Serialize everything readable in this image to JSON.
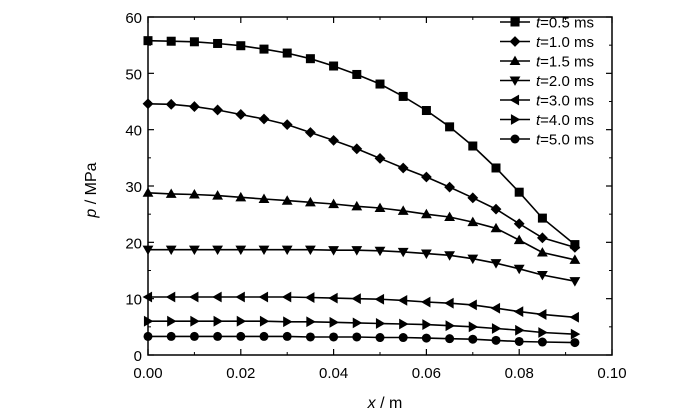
{
  "chart_data": {
    "type": "line",
    "xlabel": {
      "var": "x",
      "unit": " / m"
    },
    "ylabel": {
      "var": "p",
      "unit": " / MPa"
    },
    "xlim": [
      0,
      0.1
    ],
    "ylim": [
      0,
      60
    ],
    "x_ticks": [
      "0.00",
      "0.02",
      "0.04",
      "0.06",
      "0.08",
      "0.10"
    ],
    "y_ticks": [
      "0",
      "10",
      "20",
      "30",
      "40",
      "50",
      "60"
    ],
    "grid": false,
    "legend": "top-right",
    "series": [
      {
        "name": "t=0.5 ms",
        "name_var": "t",
        "name_rest": "=0.5 ms",
        "marker": "square",
        "x": [
          0.0,
          0.005,
          0.01,
          0.015,
          0.02,
          0.025,
          0.03,
          0.035,
          0.04,
          0.045,
          0.05,
          0.055,
          0.06,
          0.065,
          0.07,
          0.075,
          0.08,
          0.085,
          0.092
        ],
        "y": [
          55.8,
          55.7,
          55.6,
          55.3,
          54.9,
          54.3,
          53.6,
          52.6,
          51.3,
          49.8,
          48.1,
          45.9,
          43.4,
          40.5,
          37.1,
          33.2,
          28.9,
          24.3,
          19.6
        ]
      },
      {
        "name": "t=1.0 ms",
        "name_var": "t",
        "name_rest": "=1.0 ms",
        "marker": "diamond",
        "x": [
          0.0,
          0.005,
          0.01,
          0.015,
          0.02,
          0.025,
          0.03,
          0.035,
          0.04,
          0.045,
          0.05,
          0.055,
          0.06,
          0.065,
          0.07,
          0.075,
          0.08,
          0.085,
          0.092
        ],
        "y": [
          44.6,
          44.5,
          44.1,
          43.5,
          42.7,
          41.9,
          40.9,
          39.5,
          38.1,
          36.6,
          34.9,
          33.2,
          31.6,
          29.8,
          27.9,
          25.9,
          23.3,
          20.8,
          19.1
        ]
      },
      {
        "name": "t=1.5 ms",
        "name_var": "t",
        "name_rest": "=1.5 ms",
        "marker": "triangle-up",
        "x": [
          0.0,
          0.005,
          0.01,
          0.015,
          0.02,
          0.025,
          0.03,
          0.035,
          0.04,
          0.045,
          0.05,
          0.055,
          0.06,
          0.065,
          0.07,
          0.075,
          0.08,
          0.085,
          0.092
        ],
        "y": [
          28.8,
          28.6,
          28.5,
          28.3,
          28.0,
          27.7,
          27.4,
          27.1,
          26.8,
          26.4,
          26.1,
          25.6,
          25.0,
          24.5,
          23.6,
          22.5,
          20.4,
          18.2,
          16.9
        ]
      },
      {
        "name": "t=2.0 ms",
        "name_var": "t",
        "name_rest": "=2.0 ms",
        "marker": "triangle-down",
        "x": [
          0.0,
          0.005,
          0.01,
          0.015,
          0.02,
          0.025,
          0.03,
          0.035,
          0.04,
          0.045,
          0.05,
          0.055,
          0.06,
          0.065,
          0.07,
          0.075,
          0.08,
          0.085,
          0.092
        ],
        "y": [
          18.7,
          18.7,
          18.7,
          18.7,
          18.7,
          18.7,
          18.7,
          18.7,
          18.6,
          18.6,
          18.5,
          18.3,
          18.0,
          17.7,
          17.1,
          16.3,
          15.3,
          14.2,
          13.1
        ]
      },
      {
        "name": "t=3.0 ms",
        "name_var": "t",
        "name_rest": "=3.0 ms",
        "marker": "triangle-left",
        "x": [
          0.0,
          0.005,
          0.01,
          0.015,
          0.02,
          0.025,
          0.03,
          0.035,
          0.04,
          0.045,
          0.05,
          0.055,
          0.06,
          0.065,
          0.07,
          0.075,
          0.08,
          0.085,
          0.092
        ],
        "y": [
          10.3,
          10.3,
          10.3,
          10.3,
          10.3,
          10.3,
          10.3,
          10.2,
          10.1,
          10.0,
          9.9,
          9.7,
          9.4,
          9.2,
          8.9,
          8.3,
          7.7,
          7.2,
          6.7
        ]
      },
      {
        "name": "t=4.0 ms",
        "name_var": "t",
        "name_rest": "=4.0 ms",
        "marker": "triangle-right",
        "x": [
          0.0,
          0.005,
          0.01,
          0.015,
          0.02,
          0.025,
          0.03,
          0.035,
          0.04,
          0.045,
          0.05,
          0.055,
          0.06,
          0.065,
          0.07,
          0.075,
          0.08,
          0.085,
          0.092
        ],
        "y": [
          6.0,
          6.0,
          6.0,
          6.0,
          6.0,
          6.0,
          5.9,
          5.9,
          5.8,
          5.7,
          5.6,
          5.5,
          5.4,
          5.2,
          5.0,
          4.7,
          4.4,
          4.0,
          3.7
        ]
      },
      {
        "name": "t=5.0 ms",
        "name_var": "t",
        "name_rest": "=5.0 ms",
        "marker": "circle",
        "x": [
          0.0,
          0.005,
          0.01,
          0.015,
          0.02,
          0.025,
          0.03,
          0.035,
          0.04,
          0.045,
          0.05,
          0.055,
          0.06,
          0.065,
          0.07,
          0.075,
          0.08,
          0.085,
          0.092
        ],
        "y": [
          3.3,
          3.3,
          3.3,
          3.3,
          3.3,
          3.3,
          3.3,
          3.2,
          3.2,
          3.2,
          3.1,
          3.1,
          3.0,
          2.9,
          2.8,
          2.6,
          2.4,
          2.3,
          2.2
        ]
      }
    ]
  }
}
